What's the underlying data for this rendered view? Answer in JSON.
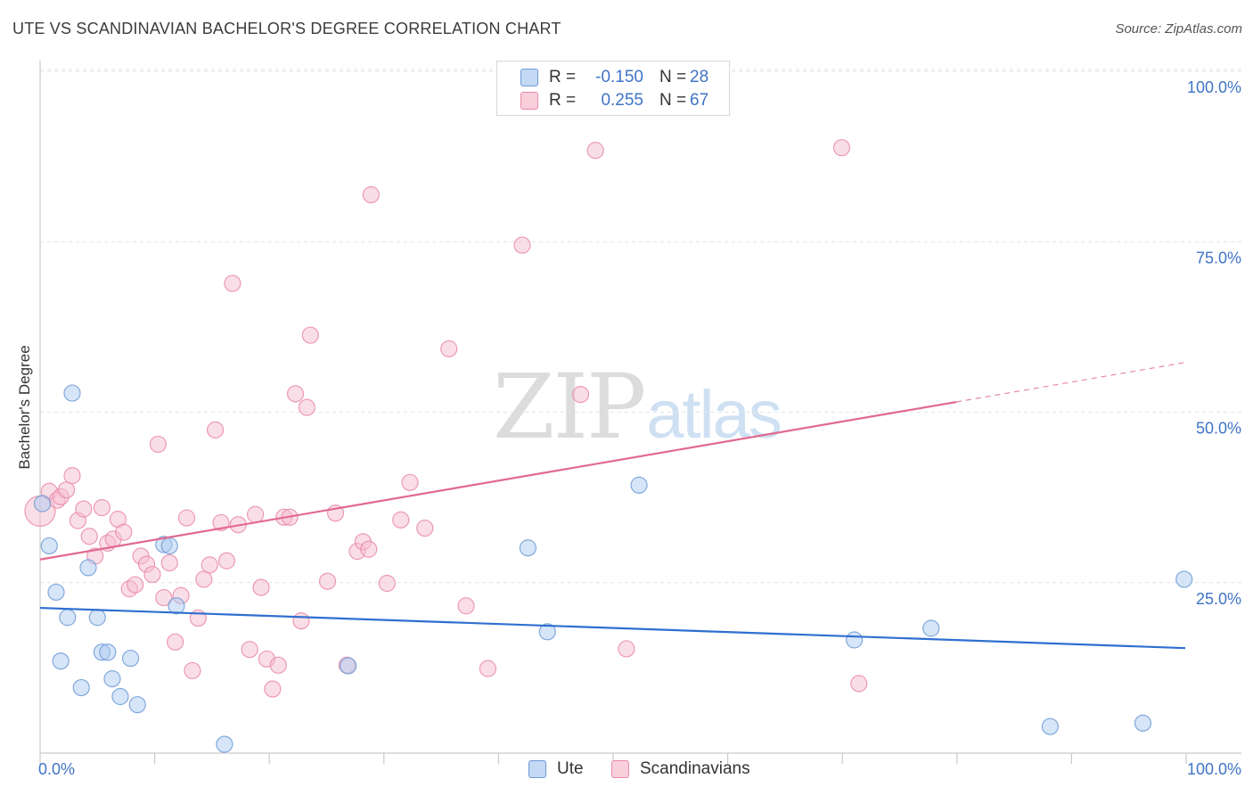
{
  "header": {
    "title": "UTE VS SCANDINAVIAN BACHELOR'S DEGREE CORRELATION CHART",
    "source": "Source: ZipAtlas.com"
  },
  "watermark": {
    "zip": "ZIP",
    "atlas": "atlas"
  },
  "legend": {
    "ute": {
      "r_label": "R =",
      "r_value": "-0.150",
      "n_label": "N =",
      "n_value": "28"
    },
    "scandinavians": {
      "r_label": "R =",
      "r_value": "0.255",
      "n_label": "N =",
      "n_value": "67"
    }
  },
  "bottom_legend": {
    "ute": "Ute",
    "scandinavians": "Scandinavians"
  },
  "colors": {
    "ute_fill": "#aecbf1",
    "ute_stroke": "#6f9bd6",
    "ute_line": "#2f6fd0",
    "scan_fill": "#f6bed0",
    "scan_stroke": "#e98aa9",
    "scan_line": "#e2698f",
    "grid": "#e3e3e3",
    "tick_text": "#3f74c6"
  },
  "chart_data": {
    "type": "scatter",
    "title": "UTE VS SCANDINAVIAN BACHELOR'S DEGREE CORRELATION CHART",
    "xlabel": "",
    "ylabel": "Bachelor's Degree",
    "xlim": [
      0,
      100
    ],
    "ylim": [
      0,
      100
    ],
    "x_tick_labels": [
      "0.0%",
      "100.0%"
    ],
    "y_tick_labels": [
      "100.0%",
      "75.0%",
      "50.0%",
      "25.0%"
    ],
    "y_tick_values": [
      100,
      75,
      50,
      25
    ],
    "series": [
      {
        "name": "Ute",
        "r": -0.15,
        "n": 28,
        "trend": {
          "x0": 0,
          "y0": 21.3,
          "x1": 100,
          "y1": 15.4
        },
        "points": [
          [
            0.2,
            36.6
          ],
          [
            0.8,
            30.4
          ],
          [
            1.4,
            23.6
          ],
          [
            1.8,
            13.5
          ],
          [
            2.4,
            19.9
          ],
          [
            2.8,
            52.8
          ],
          [
            3.6,
            9.6
          ],
          [
            4.2,
            27.2
          ],
          [
            5.0,
            19.9
          ],
          [
            5.4,
            14.8
          ],
          [
            5.9,
            14.8
          ],
          [
            6.3,
            10.9
          ],
          [
            7.0,
            8.3
          ],
          [
            7.9,
            13.9
          ],
          [
            8.5,
            7.1
          ],
          [
            10.8,
            30.6
          ],
          [
            11.3,
            30.4
          ],
          [
            11.9,
            21.6
          ],
          [
            16.1,
            1.3
          ],
          [
            26.9,
            12.8
          ],
          [
            42.6,
            30.1
          ],
          [
            44.3,
            17.8
          ],
          [
            52.3,
            39.3
          ],
          [
            71.1,
            16.6
          ],
          [
            77.8,
            18.3
          ],
          [
            88.2,
            3.9
          ],
          [
            96.3,
            4.4
          ],
          [
            99.9,
            25.5
          ]
        ]
      },
      {
        "name": "Scandinavians",
        "r": 0.255,
        "n": 67,
        "trend": {
          "x0": 0,
          "y0": 28.4,
          "x1": 80,
          "y1": 51.5,
          "dash_to_x": 100,
          "dash_to_y": 57.3
        },
        "points": [
          [
            0.0,
            35.5
          ],
          [
            0.8,
            38.4
          ],
          [
            1.5,
            37.1
          ],
          [
            1.8,
            37.6
          ],
          [
            2.3,
            38.6
          ],
          [
            2.8,
            40.7
          ],
          [
            3.3,
            34.1
          ],
          [
            3.8,
            35.8
          ],
          [
            4.3,
            31.8
          ],
          [
            4.8,
            28.9
          ],
          [
            5.4,
            36.0
          ],
          [
            5.9,
            30.8
          ],
          [
            6.4,
            31.4
          ],
          [
            6.8,
            34.3
          ],
          [
            7.3,
            32.4
          ],
          [
            7.8,
            24.1
          ],
          [
            8.3,
            24.7
          ],
          [
            8.8,
            28.9
          ],
          [
            9.3,
            27.7
          ],
          [
            9.8,
            26.2
          ],
          [
            10.3,
            45.3
          ],
          [
            10.8,
            22.8
          ],
          [
            11.3,
            27.9
          ],
          [
            11.8,
            16.3
          ],
          [
            12.3,
            23.1
          ],
          [
            12.8,
            34.5
          ],
          [
            13.3,
            12.1
          ],
          [
            13.8,
            19.8
          ],
          [
            14.3,
            25.5
          ],
          [
            14.8,
            27.6
          ],
          [
            15.3,
            47.4
          ],
          [
            15.8,
            33.8
          ],
          [
            16.3,
            28.2
          ],
          [
            16.8,
            68.9
          ],
          [
            17.3,
            33.5
          ],
          [
            18.3,
            15.2
          ],
          [
            18.8,
            35.0
          ],
          [
            19.3,
            24.3
          ],
          [
            19.8,
            13.8
          ],
          [
            20.3,
            9.4
          ],
          [
            20.8,
            12.9
          ],
          [
            21.3,
            34.6
          ],
          [
            21.8,
            34.6
          ],
          [
            22.3,
            52.7
          ],
          [
            22.8,
            19.4
          ],
          [
            23.3,
            50.7
          ],
          [
            23.6,
            61.3
          ],
          [
            25.1,
            25.2
          ],
          [
            25.8,
            35.2
          ],
          [
            26.8,
            12.9
          ],
          [
            27.7,
            29.6
          ],
          [
            28.2,
            31.0
          ],
          [
            28.7,
            29.9
          ],
          [
            28.9,
            81.9
          ],
          [
            30.3,
            24.9
          ],
          [
            31.5,
            34.2
          ],
          [
            32.3,
            39.7
          ],
          [
            33.6,
            33.0
          ],
          [
            35.7,
            59.3
          ],
          [
            37.2,
            21.6
          ],
          [
            39.1,
            12.4
          ],
          [
            42.1,
            74.5
          ],
          [
            47.2,
            52.6
          ],
          [
            48.5,
            88.4
          ],
          [
            51.2,
            15.3
          ],
          [
            70.0,
            88.8
          ],
          [
            71.5,
            10.2
          ]
        ]
      }
    ]
  }
}
